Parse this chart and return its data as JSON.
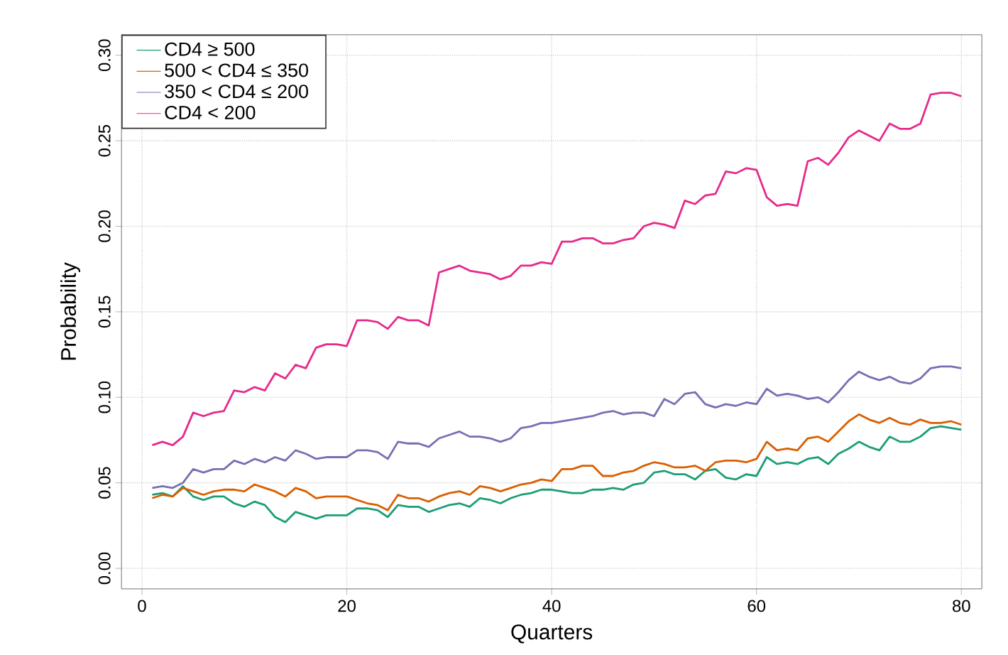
{
  "chart_data": {
    "type": "line",
    "xlabel": "Quarters",
    "ylabel": "Probability",
    "x": [
      1,
      2,
      3,
      4,
      5,
      6,
      7,
      8,
      9,
      10,
      11,
      12,
      13,
      14,
      15,
      16,
      17,
      18,
      19,
      20,
      21,
      22,
      23,
      24,
      25,
      26,
      27,
      28,
      29,
      30,
      31,
      32,
      33,
      34,
      35,
      36,
      37,
      38,
      39,
      40,
      41,
      42,
      43,
      44,
      45,
      46,
      47,
      48,
      49,
      50,
      51,
      52,
      53,
      54,
      55,
      56,
      57,
      58,
      59,
      60,
      61,
      62,
      63,
      64,
      65,
      66,
      67,
      68,
      69,
      70,
      71,
      72,
      73,
      74,
      75,
      76,
      77,
      78,
      79,
      80
    ],
    "series": [
      {
        "name": "CD4 ≥ 500",
        "color": "#1b9e77",
        "values": [
          0.043,
          0.044,
          0.042,
          0.048,
          0.042,
          0.04,
          0.042,
          0.042,
          0.038,
          0.036,
          0.039,
          0.037,
          0.03,
          0.027,
          0.033,
          0.031,
          0.029,
          0.031,
          0.031,
          0.031,
          0.035,
          0.035,
          0.034,
          0.03,
          0.037,
          0.036,
          0.036,
          0.033,
          0.035,
          0.037,
          0.038,
          0.036,
          0.041,
          0.04,
          0.038,
          0.041,
          0.043,
          0.044,
          0.046,
          0.046,
          0.045,
          0.044,
          0.044,
          0.046,
          0.046,
          0.047,
          0.046,
          0.049,
          0.05,
          0.056,
          0.057,
          0.055,
          0.055,
          0.052,
          0.057,
          0.058,
          0.053,
          0.052,
          0.055,
          0.054,
          0.065,
          0.061,
          0.062,
          0.061,
          0.064,
          0.065,
          0.061,
          0.067,
          0.07,
          0.074,
          0.071,
          0.069,
          0.077,
          0.074,
          0.074,
          0.077,
          0.082,
          0.083,
          0.082,
          0.081
        ]
      },
      {
        "name": "500 < CD4 ≤ 350",
        "color": "#d95f02",
        "values": [
          0.041,
          0.043,
          0.042,
          0.047,
          0.045,
          0.043,
          0.045,
          0.046,
          0.046,
          0.045,
          0.049,
          0.047,
          0.045,
          0.042,
          0.047,
          0.045,
          0.041,
          0.042,
          0.042,
          0.042,
          0.04,
          0.038,
          0.037,
          0.034,
          0.043,
          0.041,
          0.041,
          0.039,
          0.042,
          0.044,
          0.045,
          0.043,
          0.048,
          0.047,
          0.045,
          0.047,
          0.049,
          0.05,
          0.052,
          0.051,
          0.058,
          0.058,
          0.06,
          0.06,
          0.054,
          0.054,
          0.056,
          0.057,
          0.06,
          0.062,
          0.061,
          0.059,
          0.059,
          0.06,
          0.057,
          0.062,
          0.063,
          0.063,
          0.062,
          0.064,
          0.074,
          0.069,
          0.07,
          0.069,
          0.076,
          0.077,
          0.074,
          0.08,
          0.086,
          0.09,
          0.087,
          0.085,
          0.088,
          0.085,
          0.084,
          0.087,
          0.085,
          0.085,
          0.086,
          0.084
        ]
      },
      {
        "name": "350 < CD4 ≤ 200",
        "color": "#7570b3",
        "values": [
          0.047,
          0.048,
          0.047,
          0.05,
          0.058,
          0.056,
          0.058,
          0.058,
          0.063,
          0.061,
          0.064,
          0.062,
          0.065,
          0.063,
          0.069,
          0.067,
          0.064,
          0.065,
          0.065,
          0.065,
          0.069,
          0.069,
          0.068,
          0.064,
          0.074,
          0.073,
          0.073,
          0.071,
          0.076,
          0.078,
          0.08,
          0.077,
          0.077,
          0.076,
          0.074,
          0.076,
          0.082,
          0.083,
          0.085,
          0.085,
          0.086,
          0.087,
          0.088,
          0.089,
          0.091,
          0.092,
          0.09,
          0.091,
          0.091,
          0.089,
          0.099,
          0.096,
          0.102,
          0.103,
          0.096,
          0.094,
          0.096,
          0.095,
          0.097,
          0.096,
          0.105,
          0.101,
          0.102,
          0.101,
          0.099,
          0.1,
          0.097,
          0.103,
          0.11,
          0.115,
          0.112,
          0.11,
          0.112,
          0.109,
          0.108,
          0.111,
          0.117,
          0.118,
          0.118,
          0.117
        ]
      },
      {
        "name": "CD4 < 200",
        "color": "#e7298a",
        "values": [
          0.072,
          0.074,
          0.072,
          0.077,
          0.091,
          0.089,
          0.091,
          0.092,
          0.104,
          0.103,
          0.106,
          0.104,
          0.114,
          0.111,
          0.119,
          0.117,
          0.129,
          0.131,
          0.131,
          0.13,
          0.145,
          0.145,
          0.144,
          0.14,
          0.147,
          0.145,
          0.145,
          0.142,
          0.173,
          0.175,
          0.177,
          0.174,
          0.173,
          0.172,
          0.169,
          0.171,
          0.177,
          0.177,
          0.179,
          0.178,
          0.191,
          0.191,
          0.193,
          0.193,
          0.19,
          0.19,
          0.192,
          0.193,
          0.2,
          0.202,
          0.201,
          0.199,
          0.215,
          0.213,
          0.218,
          0.219,
          0.232,
          0.231,
          0.234,
          0.233,
          0.217,
          0.212,
          0.213,
          0.212,
          0.238,
          0.24,
          0.236,
          0.243,
          0.252,
          0.256,
          0.253,
          0.25,
          0.26,
          0.257,
          0.257,
          0.26,
          0.277,
          0.278,
          0.278,
          0.276
        ]
      }
    ],
    "xlim": [
      -2,
      82
    ],
    "ylim": [
      -0.012,
      0.312
    ],
    "xticks": [
      0,
      20,
      40,
      60,
      80
    ],
    "yticks": [
      {
        "value": 0,
        "label": "0.00"
      },
      {
        "value": 0.05,
        "label": "0.05"
      },
      {
        "value": 0.1,
        "label": "0.10"
      },
      {
        "value": 0.15,
        "label": "0.15"
      },
      {
        "value": 0.2,
        "label": "0.20"
      },
      {
        "value": 0.25,
        "label": "0.25"
      },
      {
        "value": 0.3,
        "label": "0.30"
      }
    ],
    "grid": true,
    "legend": "top left",
    "line_style": "solid",
    "marker": "none"
  }
}
